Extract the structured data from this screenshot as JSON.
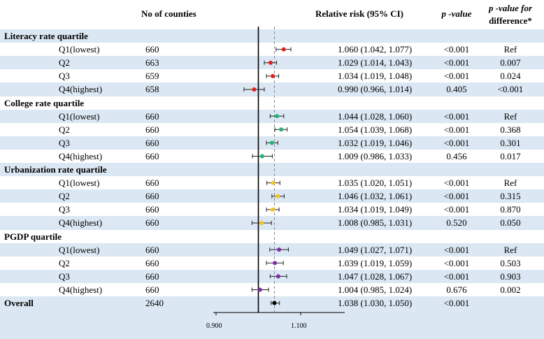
{
  "header": {
    "count_label": "No of counties",
    "rr_label": "Relative risk (95% CI)",
    "pvalue_label": "p -value",
    "pdiff_label_line1": "p -value for",
    "pdiff_label_line2": "difference*"
  },
  "groups": [
    {
      "title": "Literacy rate quartile",
      "color": "#e0201c",
      "rows": [
        {
          "label": "Q1(lowest)",
          "n": "660",
          "ci_text": "1.060 (1.042, 1.077)",
          "p": "<0.001",
          "pdiff": "Ref"
        },
        {
          "label": "Q2",
          "n": "663",
          "ci_text": "1.029 (1.014, 1.043)",
          "p": "<0.001",
          "pdiff": "0.007"
        },
        {
          "label": "Q3",
          "n": "659",
          "ci_text": "1.034 (1.019, 1.048)",
          "p": "<0.001",
          "pdiff": "0.024"
        },
        {
          "label": "Q4(highest)",
          "n": "658",
          "ci_text": "0.990 (0.966, 1.014)",
          "p": "0.405",
          "pdiff": "<0.001"
        }
      ]
    },
    {
      "title": "College rate quartile",
      "color": "#22b573",
      "rows": [
        {
          "label": "Q1(lowest)",
          "n": "660",
          "ci_text": "1.044 (1.028, 1.060)",
          "p": "<0.001",
          "pdiff": "Ref"
        },
        {
          "label": "Q2",
          "n": "660",
          "ci_text": "1.054 (1.039, 1.068)",
          "p": "<0.001",
          "pdiff": "0.368"
        },
        {
          "label": "Q3",
          "n": "660",
          "ci_text": "1.032 (1.019, 1.046)",
          "p": "<0.001",
          "pdiff": "0.301"
        },
        {
          "label": "Q4(highest)",
          "n": "660",
          "ci_text": "1.009 (0.986, 1.033)",
          "p": "0.456",
          "pdiff": "0.017"
        }
      ]
    },
    {
      "title": "Urbanization rate quartile",
      "color": "#f5c518",
      "rows": [
        {
          "label": "Q1(lowest)",
          "n": "660",
          "ci_text": "1.035 (1.020, 1.051)",
          "p": "<0.001",
          "pdiff": "Ref"
        },
        {
          "label": "Q2",
          "n": "660",
          "ci_text": "1.046 (1.032, 1.061)",
          "p": "<0.001",
          "pdiff": "0.315"
        },
        {
          "label": "Q3",
          "n": "660",
          "ci_text": "1.034 (1.019, 1.049)",
          "p": "<0.001",
          "pdiff": "0.870"
        },
        {
          "label": "Q4(highest)",
          "n": "660",
          "ci_text": "1.008 (0.985, 1.031)",
          "p": "0.520",
          "pdiff": "0.050"
        }
      ]
    },
    {
      "title": "PGDP quartile",
      "color": "#7b2fa8",
      "rows": [
        {
          "label": "Q1(lowest)",
          "n": "660",
          "ci_text": "1.049 (1.027, 1.071)",
          "p": "<0.001",
          "pdiff": "Ref"
        },
        {
          "label": "Q2",
          "n": "660",
          "ci_text": "1.039 (1.019, 1.059)",
          "p": "<0.001",
          "pdiff": "0.503"
        },
        {
          "label": "Q3",
          "n": "660",
          "ci_text": "1.047 (1.028, 1.067)",
          "p": "<0.001",
          "pdiff": "0.903"
        },
        {
          "label": "Q4(highest)",
          "n": "660",
          "ci_text": "1.004 (0.985, 1.024)",
          "p": "0.676",
          "pdiff": "0.002"
        }
      ]
    }
  ],
  "overall": {
    "label": "Overall",
    "n": "2640",
    "ci_text": "1.038 (1.030, 1.050)",
    "p": "<0.001",
    "pdiff": "",
    "color": "#000000"
  },
  "chart_data": {
    "type": "scatter",
    "xlim": [
      0.9,
      1.1
    ],
    "null_line": 1.0,
    "overall_ref_line": 1.038,
    "xticks": [
      "0.900",
      "1.100"
    ],
    "series": [
      {
        "name": "Literacy rate quartile",
        "points": [
          {
            "x": 1.06,
            "lo": 1.042,
            "hi": 1.077
          },
          {
            "x": 1.029,
            "lo": 1.014,
            "hi": 1.043
          },
          {
            "x": 1.034,
            "lo": 1.019,
            "hi": 1.048
          },
          {
            "x": 0.99,
            "lo": 0.966,
            "hi": 1.014
          }
        ]
      },
      {
        "name": "College rate quartile",
        "points": [
          {
            "x": 1.044,
            "lo": 1.028,
            "hi": 1.06
          },
          {
            "x": 1.054,
            "lo": 1.039,
            "hi": 1.068
          },
          {
            "x": 1.032,
            "lo": 1.019,
            "hi": 1.046
          },
          {
            "x": 1.009,
            "lo": 0.986,
            "hi": 1.033
          }
        ]
      },
      {
        "name": "Urbanization rate quartile",
        "points": [
          {
            "x": 1.035,
            "lo": 1.02,
            "hi": 1.051
          },
          {
            "x": 1.046,
            "lo": 1.032,
            "hi": 1.061
          },
          {
            "x": 1.034,
            "lo": 1.019,
            "hi": 1.049
          },
          {
            "x": 1.008,
            "lo": 0.985,
            "hi": 1.031
          }
        ]
      },
      {
        "name": "PGDP quartile",
        "points": [
          {
            "x": 1.049,
            "lo": 1.027,
            "hi": 1.071
          },
          {
            "x": 1.039,
            "lo": 1.019,
            "hi": 1.059
          },
          {
            "x": 1.047,
            "lo": 1.028,
            "hi": 1.067
          },
          {
            "x": 1.004,
            "lo": 0.985,
            "hi": 1.024
          }
        ]
      },
      {
        "name": "Overall",
        "points": [
          {
            "x": 1.038,
            "lo": 1.03,
            "hi": 1.05
          }
        ]
      }
    ]
  }
}
